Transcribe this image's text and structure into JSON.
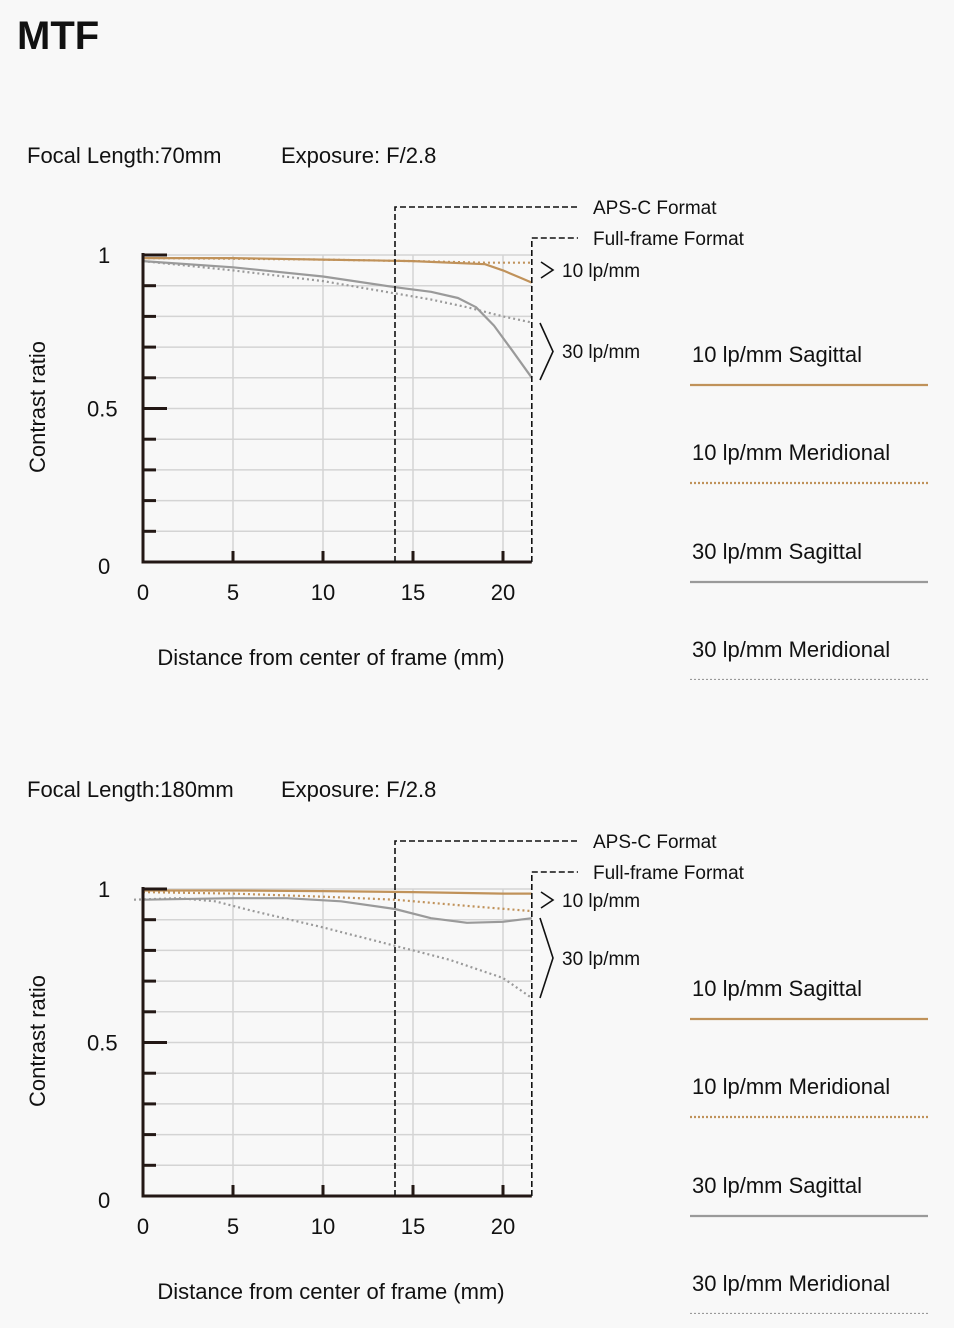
{
  "page_title": "MTF",
  "colors": {
    "ten_lp": "#c0925a",
    "thirty_lp": "#9a9a9a",
    "axis": "#231815",
    "grid": "#d4d4d4"
  },
  "chart_data": [
    {
      "type": "line",
      "title": "Focal Length:70mm",
      "exposure": "Exposure: F/2.8",
      "xlabel": "Distance from center of frame (mm)",
      "ylabel": "Contrast ratio",
      "xlim": [
        0,
        21.6
      ],
      "ylim": [
        0,
        1
      ],
      "xticks": [
        "0",
        "5",
        "10",
        "15",
        "20"
      ],
      "yticks": [
        "0",
        "0.5",
        "1"
      ],
      "grid": true,
      "aps_c_limit": 14,
      "full_frame_limit": 21.6,
      "annotations": {
        "aps_c": "APS-C Format",
        "full_frame": "Full-frame Format",
        "lp10": "10 lp/mm",
        "lp30": "30 lp/mm"
      },
      "legend": {
        "placement": "right",
        "entries": [
          "10 lp/mm Sagittal",
          "10 lp/mm Meridional",
          "30 lp/mm Sagittal",
          "30 lp/mm Meridional"
        ]
      },
      "series": [
        {
          "name": "10 lp/mm Sagittal",
          "x": [
            0,
            5,
            10,
            15,
            19,
            20,
            21,
            21.6
          ],
          "y": [
            0.99,
            0.99,
            0.985,
            0.98,
            0.97,
            0.95,
            0.925,
            0.91
          ]
        },
        {
          "name": "10 lp/mm Meridional",
          "x": [
            0,
            5,
            10,
            15,
            19,
            20,
            21.6
          ],
          "y": [
            0.99,
            0.988,
            0.985,
            0.98,
            0.975,
            0.975,
            0.975
          ]
        },
        {
          "name": "30 lp/mm Sagittal",
          "x": [
            0,
            5,
            10,
            14,
            16,
            17.5,
            18.5,
            19.5,
            20.5,
            21.6
          ],
          "y": [
            0.98,
            0.96,
            0.93,
            0.895,
            0.88,
            0.86,
            0.83,
            0.77,
            0.69,
            0.6
          ]
        },
        {
          "name": "30 lp/mm Meridional",
          "x": [
            0,
            5,
            10,
            14,
            16,
            18,
            20,
            21.6
          ],
          "y": [
            0.98,
            0.95,
            0.915,
            0.875,
            0.855,
            0.83,
            0.8,
            0.78
          ]
        }
      ]
    },
    {
      "type": "line",
      "title": "Focal Length:180mm",
      "exposure": "Exposure: F/2.8",
      "xlabel": "Distance from center of frame (mm)",
      "ylabel": "Contrast ratio",
      "xlim": [
        0,
        21.6
      ],
      "ylim": [
        0,
        1
      ],
      "xticks": [
        "0",
        "5",
        "10",
        "15",
        "20"
      ],
      "yticks": [
        "0",
        "0.5",
        "1"
      ],
      "grid": true,
      "aps_c_limit": 14,
      "full_frame_limit": 21.6,
      "annotations": {
        "aps_c": "APS-C Format",
        "full_frame": "Full-frame Format",
        "lp10": "10 lp/mm",
        "lp30": "30 lp/mm"
      },
      "legend": {
        "placement": "right",
        "entries": [
          "10 lp/mm Sagittal",
          "10 lp/mm Meridional",
          "30 lp/mm Sagittal",
          "30 lp/mm Meridional"
        ]
      },
      "series": [
        {
          "name": "10 lp/mm Sagittal",
          "x": [
            0,
            5,
            10,
            15,
            20,
            21.6
          ],
          "y": [
            0.995,
            0.995,
            0.993,
            0.99,
            0.985,
            0.985
          ]
        },
        {
          "name": "10 lp/mm Meridional",
          "x": [
            0,
            5,
            10,
            14,
            18,
            21.6
          ],
          "y": [
            0.99,
            0.985,
            0.975,
            0.965,
            0.945,
            0.928
          ]
        },
        {
          "name": "30 lp/mm Sagittal",
          "x": [
            0,
            5,
            8,
            11,
            14,
            16,
            18,
            20,
            21.6
          ],
          "y": [
            0.965,
            0.97,
            0.97,
            0.96,
            0.935,
            0.905,
            0.89,
            0.893,
            0.905
          ]
        },
        {
          "name": "30 lp/mm Meridional",
          "x": [
            -0.5,
            2,
            4,
            6,
            10,
            14,
            17,
            20,
            21.6
          ],
          "y": [
            0.965,
            0.97,
            0.96,
            0.93,
            0.875,
            0.815,
            0.77,
            0.71,
            0.645
          ]
        }
      ]
    }
  ]
}
